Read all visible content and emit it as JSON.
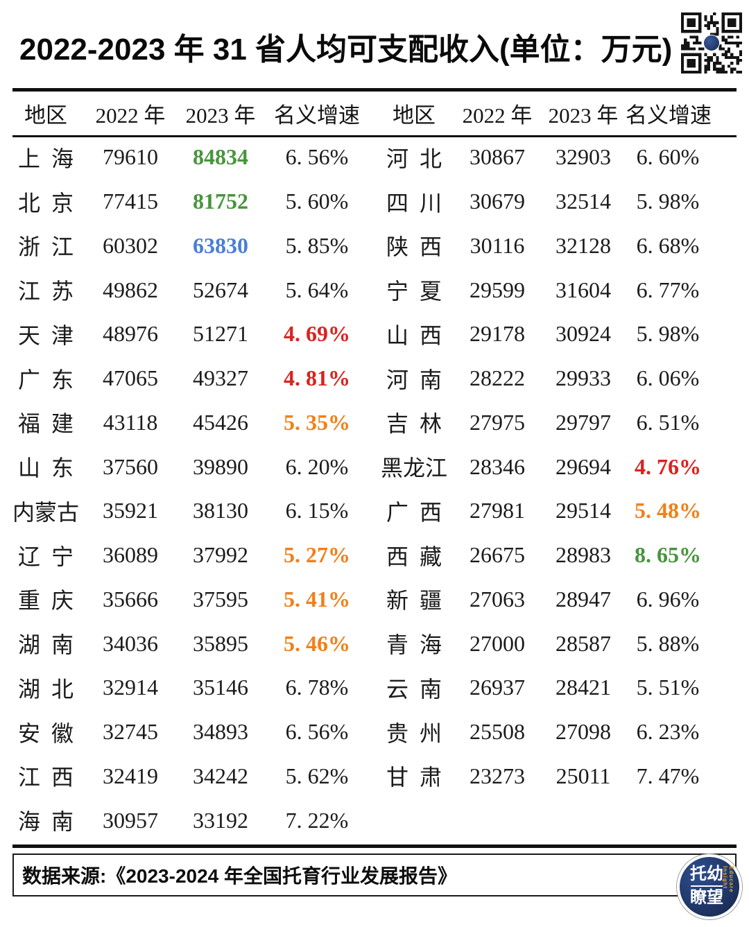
{
  "title": "2022-2023 年 31 省人均可支配收入(单位：万元)",
  "source_note": "数据来源:《2023-2024 年全国托育行业发展报告》",
  "logo": {
    "line1": "托幼",
    "line2": "瞭望",
    "side_text": "Educare Insight"
  },
  "colors": {
    "black": "#1b1b1b",
    "green": "#47953c",
    "blue": "#4a7ed8",
    "red": "#d9231f",
    "orange": "#f08019",
    "navy": "#1f3a70"
  },
  "table": {
    "headers": [
      "地区",
      "2022 年",
      "2023 年",
      "名义增速"
    ],
    "left_rows": [
      {
        "region": "上海",
        "v2022": "79610",
        "v2023": "84834",
        "growth": "6. 56%",
        "v2023_color": "green"
      },
      {
        "region": "北京",
        "v2022": "77415",
        "v2023": "81752",
        "growth": "5. 60%",
        "v2023_color": "green"
      },
      {
        "region": "浙江",
        "v2022": "60302",
        "v2023": "63830",
        "growth": "5. 85%",
        "v2023_color": "blue"
      },
      {
        "region": "江苏",
        "v2022": "49862",
        "v2023": "52674",
        "growth": "5. 64%"
      },
      {
        "region": "天津",
        "v2022": "48976",
        "v2023": "51271",
        "growth": "4. 69%",
        "growth_color": "red"
      },
      {
        "region": "广东",
        "v2022": "47065",
        "v2023": "49327",
        "growth": "4. 81%",
        "growth_color": "red"
      },
      {
        "region": "福建",
        "v2022": "43118",
        "v2023": "45426",
        "growth": "5. 35%",
        "growth_color": "orange"
      },
      {
        "region": "山东",
        "v2022": "37560",
        "v2023": "39890",
        "growth": "6. 20%"
      },
      {
        "region": "内蒙古",
        "v2022": "35921",
        "v2023": "38130",
        "growth": "6. 15%"
      },
      {
        "region": "辽宁",
        "v2022": "36089",
        "v2023": "37992",
        "growth": "5. 27%",
        "growth_color": "orange"
      },
      {
        "region": "重庆",
        "v2022": "35666",
        "v2023": "37595",
        "growth": "5. 41%",
        "growth_color": "orange"
      },
      {
        "region": "湖南",
        "v2022": "34036",
        "v2023": "35895",
        "growth": "5. 46%",
        "growth_color": "orange"
      },
      {
        "region": "湖北",
        "v2022": "32914",
        "v2023": "35146",
        "growth": "6. 78%"
      },
      {
        "region": "安徽",
        "v2022": "32745",
        "v2023": "34893",
        "growth": "6. 56%"
      },
      {
        "region": "江西",
        "v2022": "32419",
        "v2023": "34242",
        "growth": "5. 62%"
      },
      {
        "region": "海南",
        "v2022": "30957",
        "v2023": "33192",
        "growth": "7. 22%"
      }
    ],
    "right_rows": [
      {
        "region": "河北",
        "v2022": "30867",
        "v2023": "32903",
        "growth": "6. 60%"
      },
      {
        "region": "四川",
        "v2022": "30679",
        "v2023": "32514",
        "growth": "5. 98%"
      },
      {
        "region": "陕西",
        "v2022": "30116",
        "v2023": "32128",
        "growth": "6. 68%"
      },
      {
        "region": "宁夏",
        "v2022": "29599",
        "v2023": "31604",
        "growth": "6. 77%"
      },
      {
        "region": "山西",
        "v2022": "29178",
        "v2023": "30924",
        "growth": "5. 98%"
      },
      {
        "region": "河南",
        "v2022": "28222",
        "v2023": "29933",
        "growth": "6. 06%"
      },
      {
        "region": "吉林",
        "v2022": "27975",
        "v2023": "29797",
        "growth": "6. 51%"
      },
      {
        "region": "黑龙江",
        "v2022": "28346",
        "v2023": "29694",
        "growth": "4. 76%",
        "growth_color": "red"
      },
      {
        "region": "广西",
        "v2022": "27981",
        "v2023": "29514",
        "growth": "5. 48%",
        "growth_color": "orange"
      },
      {
        "region": "西藏",
        "v2022": "26675",
        "v2023": "28983",
        "growth": "8. 65%",
        "growth_color": "green"
      },
      {
        "region": "新疆",
        "v2022": "27063",
        "v2023": "28947",
        "growth": "6. 96%"
      },
      {
        "region": "青海",
        "v2022": "27000",
        "v2023": "28587",
        "growth": "5. 88%"
      },
      {
        "region": "云南",
        "v2022": "26937",
        "v2023": "28421",
        "growth": "5. 51%"
      },
      {
        "region": "贵州",
        "v2022": "25508",
        "v2023": "27098",
        "growth": "6. 23%"
      },
      {
        "region": "甘肃",
        "v2022": "23273",
        "v2023": "25011",
        "growth": "7. 47%"
      }
    ]
  },
  "chart_data": {
    "type": "table",
    "title": "2022-2023 年 31 省人均可支配收入(单位：万元)",
    "columns": [
      "地区",
      "2022 年",
      "2023 年",
      "名义增速(%)"
    ],
    "rows": [
      [
        "上海",
        79610,
        84834,
        6.56
      ],
      [
        "北京",
        77415,
        81752,
        5.6
      ],
      [
        "浙江",
        60302,
        63830,
        5.85
      ],
      [
        "江苏",
        49862,
        52674,
        5.64
      ],
      [
        "天津",
        48976,
        51271,
        4.69
      ],
      [
        "广东",
        47065,
        49327,
        4.81
      ],
      [
        "福建",
        43118,
        45426,
        5.35
      ],
      [
        "山东",
        37560,
        39890,
        6.2
      ],
      [
        "内蒙古",
        35921,
        38130,
        6.15
      ],
      [
        "辽宁",
        36089,
        37992,
        5.27
      ],
      [
        "重庆",
        35666,
        37595,
        5.41
      ],
      [
        "湖南",
        34036,
        35895,
        5.46
      ],
      [
        "湖北",
        32914,
        35146,
        6.78
      ],
      [
        "安徽",
        32745,
        34893,
        6.56
      ],
      [
        "江西",
        32419,
        34242,
        5.62
      ],
      [
        "海南",
        30957,
        33192,
        7.22
      ],
      [
        "河北",
        30867,
        32903,
        6.6
      ],
      [
        "四川",
        30679,
        32514,
        5.98
      ],
      [
        "陕西",
        30116,
        32128,
        6.68
      ],
      [
        "宁夏",
        29599,
        31604,
        6.77
      ],
      [
        "山西",
        29178,
        30924,
        5.98
      ],
      [
        "河南",
        28222,
        29933,
        6.06
      ],
      [
        "吉林",
        27975,
        29797,
        6.51
      ],
      [
        "黑龙江",
        28346,
        29694,
        4.76
      ],
      [
        "广西",
        27981,
        29514,
        5.48
      ],
      [
        "西藏",
        26675,
        28983,
        8.65
      ],
      [
        "新疆",
        27063,
        28947,
        6.96
      ],
      [
        "青海",
        27000,
        28587,
        5.88
      ],
      [
        "云南",
        26937,
        28421,
        5.51
      ],
      [
        "贵州",
        25508,
        27098,
        6.23
      ],
      [
        "甘肃",
        23273,
        25011,
        7.47
      ]
    ],
    "notes": "源: 数据来源:《2023-2024 年全国托育行业发展报告》"
  }
}
